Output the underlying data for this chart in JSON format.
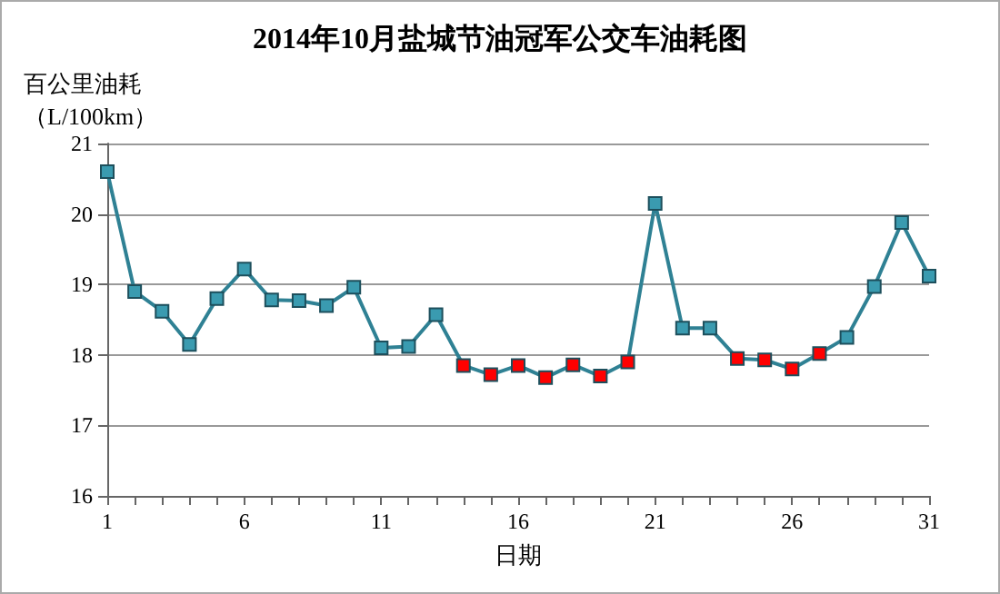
{
  "chart_data": {
    "type": "line",
    "title": "2014年10月盐城节油冠军公交车油耗图",
    "xlabel": "日期",
    "ylabel": "百公里油耗（L/100km）",
    "x": [
      1,
      2,
      3,
      4,
      5,
      6,
      7,
      8,
      9,
      10,
      11,
      12,
      13,
      14,
      15,
      16,
      17,
      18,
      19,
      20,
      21,
      22,
      23,
      24,
      25,
      26,
      27,
      28,
      29,
      30,
      31
    ],
    "series": [
      {
        "color": "#2f8194",
        "values": [
          20.6,
          18.9,
          18.62,
          18.15,
          18.8,
          19.22,
          18.78,
          18.77,
          18.7,
          18.96,
          18.1,
          18.12,
          18.57,
          17.85,
          17.72,
          17.85,
          17.68,
          17.86,
          17.7,
          17.9,
          20.15,
          18.38,
          18.38,
          17.95,
          17.93,
          17.8,
          18.02,
          18.25,
          18.97,
          19.88,
          19.12
        ],
        "colors": [
          "#3a9bb0",
          "#3a9bb0",
          "#3a9bb0",
          "#3a9bb0",
          "#3a9bb0",
          "#3a9bb0",
          "#3a9bb0",
          "#3a9bb0",
          "#3a9bb0",
          "#3a9bb0",
          "#3a9bb0",
          "#3a9bb0",
          "#3a9bb0",
          "#ff0000",
          "#ff0000",
          "#ff0000",
          "#ff0000",
          "#ff0000",
          "#ff0000",
          "#ff0000",
          "#3a9bb0",
          "#3a9bb0",
          "#3a9bb0",
          "#ff0000",
          "#ff0000",
          "#ff0000",
          "#ff0000",
          "#3a9bb0",
          "#3a9bb0",
          "#3a9bb0",
          "#3a9bb0"
        ]
      }
    ],
    "xlim": [
      1,
      31
    ],
    "xticks": [
      1,
      {
        "value": 2,
        "label": null
      },
      {
        "value": 3,
        "label": null
      },
      {
        "value": 4,
        "label": null
      },
      {
        "value": 5,
        "label": null
      },
      6,
      {
        "value": 7,
        "label": null
      },
      {
        "value": 8,
        "label": null
      },
      {
        "value": 9,
        "label": null
      },
      {
        "value": 10,
        "label": null
      },
      11,
      {
        "value": 12,
        "label": null
      },
      {
        "value": 13,
        "label": null
      },
      {
        "value": 14,
        "label": null
      },
      {
        "value": 15,
        "label": null
      },
      16,
      {
        "value": 17,
        "label": null
      },
      {
        "value": 18,
        "label": null
      },
      {
        "value": 19,
        "label": null
      },
      {
        "value": 20,
        "label": null
      },
      21,
      {
        "value": 22,
        "label": null
      },
      {
        "value": 23,
        "label": null
      },
      {
        "value": 24,
        "label": null
      },
      {
        "value": 25,
        "label": null
      },
      26,
      {
        "value": 27,
        "label": null
      },
      {
        "value": 28,
        "label": null
      },
      {
        "value": 29,
        "label": null
      },
      {
        "value": 30,
        "label": null
      },
      31
    ],
    "ylim": [
      16,
      21
    ],
    "yticks": [
      16,
      17,
      18,
      19,
      20,
      21
    ],
    "grid": "y",
    "marker": "square",
    "line_style": "solid"
  }
}
